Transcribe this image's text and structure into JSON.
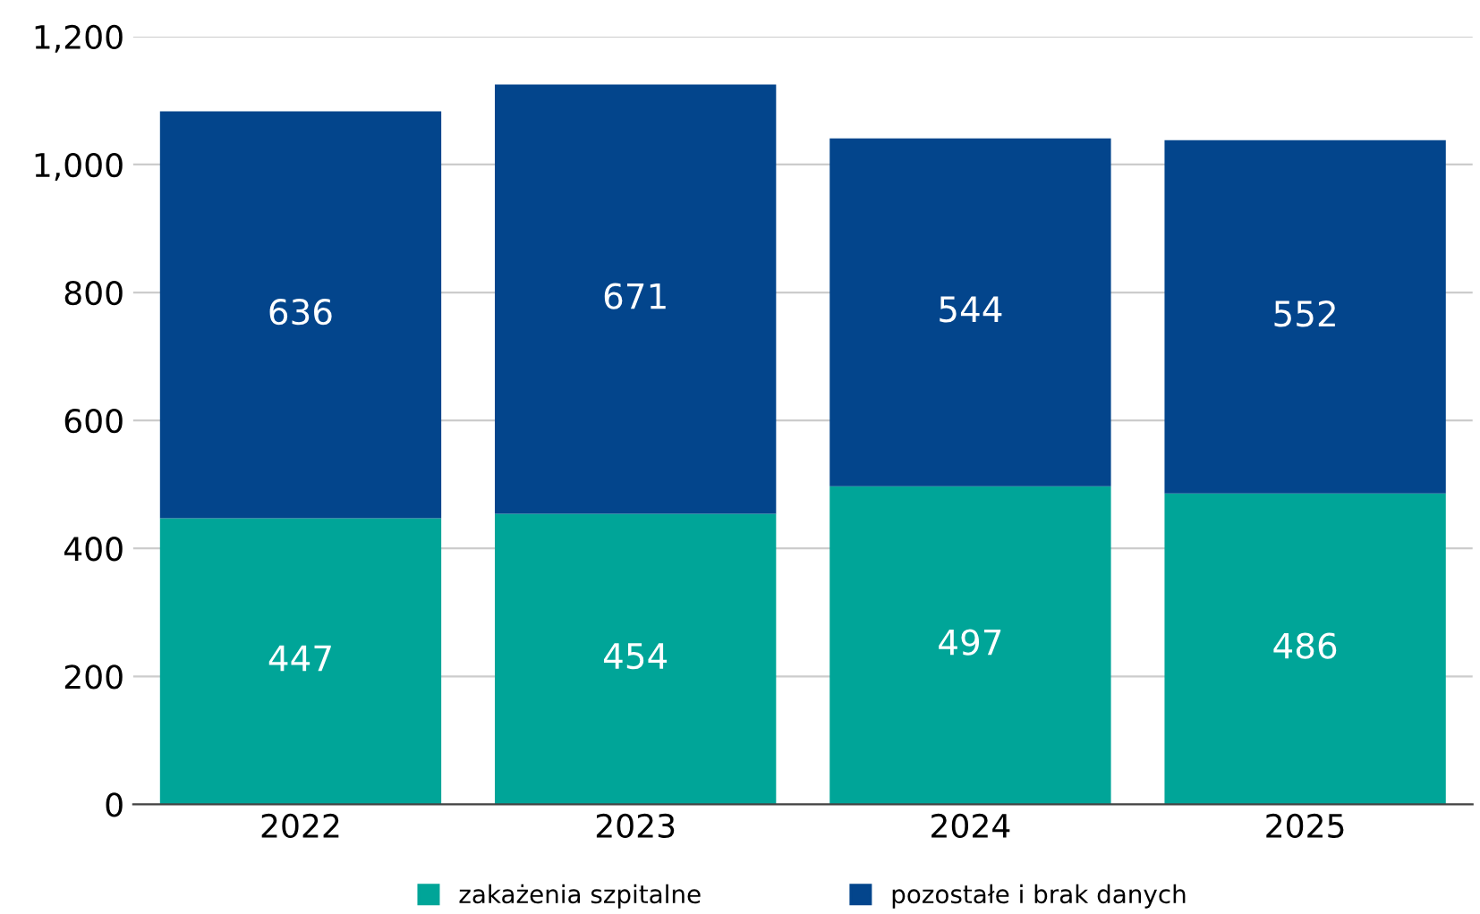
{
  "chart_data": {
    "type": "bar",
    "stacked": true,
    "categories": [
      "2022",
      "2023",
      "2024",
      "2025"
    ],
    "series": [
      {
        "name": "zakażenia szpitalne",
        "color": "#00a598",
        "values": [
          447,
          454,
          497,
          486
        ]
      },
      {
        "name": "pozostałe i brak danych",
        "color": "#03458c",
        "values": [
          636,
          671,
          544,
          552
        ]
      }
    ],
    "ylim": [
      0,
      1200
    ],
    "yticks": [
      0,
      200,
      400,
      600,
      800,
      {
        "value": 1000,
        "label": "1,000"
      },
      {
        "value": 1200,
        "label": "1,200"
      }
    ],
    "grid": "y",
    "legend": "bottom",
    "data_labels": true
  }
}
